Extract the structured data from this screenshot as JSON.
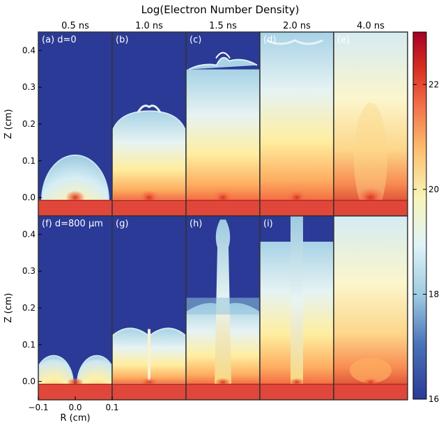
{
  "title": "Log(Electron Number Density)",
  "time_labels": [
    "0.5 ns",
    "1.0 ns",
    "1.5 ns",
    "2.0 ns",
    "4.0 ns"
  ],
  "rows": [
    {
      "panels": [
        {
          "label": "(a) d=0"
        },
        {
          "label": "(b)"
        },
        {
          "label": "(c)"
        },
        {
          "label": "(d)"
        },
        {
          "label": "(e)"
        }
      ]
    },
    {
      "panels": [
        {
          "label": "(f) d=800 μm"
        },
        {
          "label": "(g)"
        },
        {
          "label": "(h)"
        },
        {
          "label": "(i)"
        },
        {
          "label": ""
        }
      ]
    }
  ],
  "y_axis": {
    "label": "Z (cm)",
    "ticks": [
      "0.4",
      "0.3",
      "0.2",
      "0.1",
      "0.0"
    ]
  },
  "x_axis": {
    "label": "R (cm)",
    "ticks": [
      "−0.1",
      "0.0",
      "0.1"
    ]
  },
  "colorbar": {
    "ticks": [
      "22",
      "20",
      "18",
      "16"
    ],
    "range": [
      16,
      23
    ]
  },
  "colors": {
    "background_low": "#2b3a96",
    "low": "#3a5bb0",
    "mid_blue": "#9cc9e0",
    "mid": "#f7f4b8",
    "warm": "#fdbf6f",
    "orange": "#f2704a",
    "high": "#d7301f",
    "max": "#a50026"
  }
}
